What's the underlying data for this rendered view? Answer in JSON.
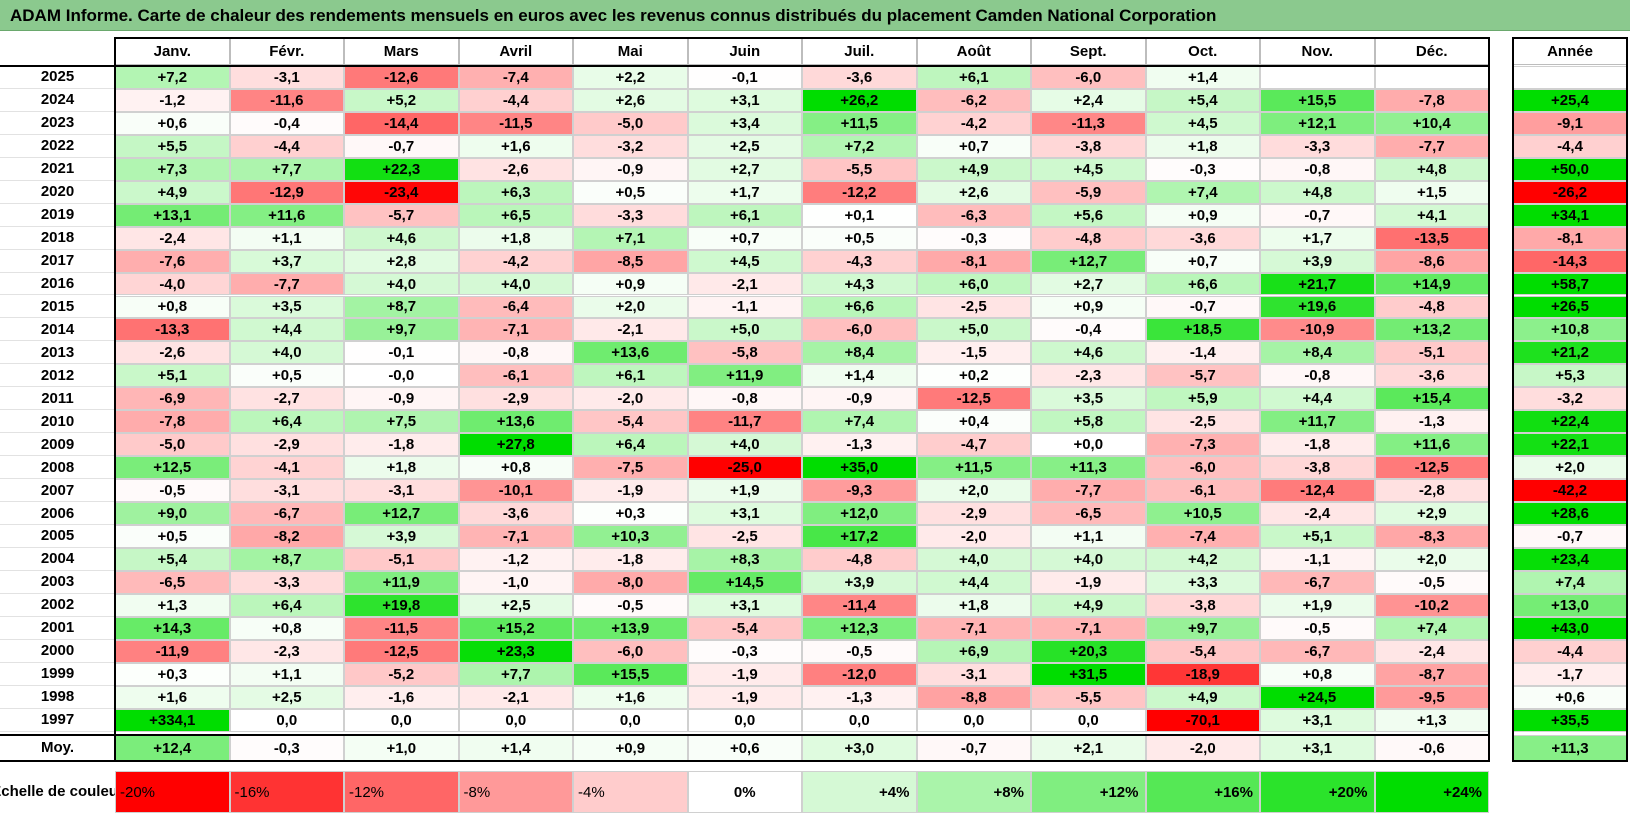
{
  "title": "ADAM Informe. Carte de chaleur des rendements mensuels en euros avec les revenus connus distribués du placement Camden National Corporation",
  "chart_data": {
    "type": "heatmap",
    "title": "ADAM Informe. Carte de chaleur des rendements mensuels en euros avec les revenus connus distribués du placement Camden National Corporation",
    "columns": [
      "Janv.",
      "Févr.",
      "Mars",
      "Avril",
      "Mai",
      "Juin",
      "Juil.",
      "Août",
      "Sept.",
      "Oct.",
      "Nov.",
      "Déc."
    ],
    "year_column_label": "Année",
    "rows": [
      {
        "year": "2025",
        "values": [
          "+7,2",
          "-3,1",
          "-12,6",
          "-7,4",
          "+2,2",
          "-0,1",
          "-3,6",
          "+6,1",
          "-6,0",
          "+1,4",
          "",
          ""
        ],
        "annual": ""
      },
      {
        "year": "2024",
        "values": [
          "-1,2",
          "-11,6",
          "+5,2",
          "-4,4",
          "+2,6",
          "+3,1",
          "+26,2",
          "-6,2",
          "+2,4",
          "+5,4",
          "+15,5",
          "-7,8"
        ],
        "annual": "+25,4"
      },
      {
        "year": "2023",
        "values": [
          "+0,6",
          "-0,4",
          "-14,4",
          "-11,5",
          "-5,0",
          "+3,4",
          "+11,5",
          "-4,2",
          "-11,3",
          "+4,5",
          "+12,1",
          "+10,4"
        ],
        "annual": "-9,1"
      },
      {
        "year": "2022",
        "values": [
          "+5,5",
          "-4,4",
          "-0,7",
          "+1,6",
          "-3,2",
          "+2,5",
          "+7,2",
          "+0,7",
          "-3,8",
          "+1,8",
          "-3,3",
          "-7,7"
        ],
        "annual": "-4,4"
      },
      {
        "year": "2021",
        "values": [
          "+7,3",
          "+7,7",
          "+22,3",
          "-2,6",
          "-0,9",
          "+2,7",
          "-5,5",
          "+4,9",
          "+4,5",
          "-0,3",
          "-0,8",
          "+4,8"
        ],
        "annual": "+50,0"
      },
      {
        "year": "2020",
        "values": [
          "+4,9",
          "-12,9",
          "-23,4",
          "+6,3",
          "+0,5",
          "+1,7",
          "-12,2",
          "+2,6",
          "-5,9",
          "+7,4",
          "+4,8",
          "+1,5"
        ],
        "annual": "-26,2"
      },
      {
        "year": "2019",
        "values": [
          "+13,1",
          "+11,6",
          "-5,7",
          "+6,5",
          "-3,3",
          "+6,1",
          "+0,1",
          "-6,3",
          "+5,6",
          "+0,9",
          "-0,7",
          "+4,1"
        ],
        "annual": "+34,1"
      },
      {
        "year": "2018",
        "values": [
          "-2,4",
          "+1,1",
          "+4,6",
          "+1,8",
          "+7,1",
          "+0,7",
          "+0,5",
          "-0,3",
          "-4,8",
          "-3,6",
          "+1,7",
          "-13,5"
        ],
        "annual": "-8,1"
      },
      {
        "year": "2017",
        "values": [
          "-7,6",
          "+3,7",
          "+2,8",
          "-4,2",
          "-8,5",
          "+4,5",
          "-4,3",
          "-8,1",
          "+12,7",
          "+0,7",
          "+3,9",
          "-8,6"
        ],
        "annual": "-14,3"
      },
      {
        "year": "2016",
        "values": [
          "-4,0",
          "-7,7",
          "+4,0",
          "+4,0",
          "+0,9",
          "-2,1",
          "+4,3",
          "+6,0",
          "+2,7",
          "+6,6",
          "+21,7",
          "+14,9"
        ],
        "annual": "+58,7"
      },
      {
        "year": "2015",
        "values": [
          "+0,8",
          "+3,5",
          "+8,7",
          "-6,4",
          "+2,0",
          "-1,1",
          "+6,6",
          "-2,5",
          "+0,9",
          "-0,7",
          "+19,6",
          "-4,8"
        ],
        "annual": "+26,5"
      },
      {
        "year": "2014",
        "values": [
          "-13,3",
          "+4,4",
          "+9,7",
          "-7,1",
          "-2,1",
          "+5,0",
          "-6,0",
          "+5,0",
          "-0,4",
          "+18,5",
          "-10,9",
          "+13,2"
        ],
        "annual": "+10,8"
      },
      {
        "year": "2013",
        "values": [
          "-2,6",
          "+4,0",
          "-0,1",
          "-0,8",
          "+13,6",
          "-5,8",
          "+8,4",
          "-1,5",
          "+4,6",
          "-1,4",
          "+8,4",
          "-5,1"
        ],
        "annual": "+21,2"
      },
      {
        "year": "2012",
        "values": [
          "+5,1",
          "+0,5",
          "-0,0",
          "-6,1",
          "+6,1",
          "+11,9",
          "+1,4",
          "+0,2",
          "-2,3",
          "-5,7",
          "-0,8",
          "-3,6"
        ],
        "annual": "+5,3"
      },
      {
        "year": "2011",
        "values": [
          "-6,9",
          "-2,7",
          "-0,9",
          "-2,9",
          "-2,0",
          "-0,8",
          "-0,9",
          "-12,5",
          "+3,5",
          "+5,9",
          "+4,4",
          "+15,4"
        ],
        "annual": "-3,2"
      },
      {
        "year": "2010",
        "values": [
          "-7,8",
          "+6,4",
          "+7,5",
          "+13,6",
          "-5,4",
          "-11,7",
          "+7,4",
          "+0,4",
          "+5,8",
          "-2,5",
          "+11,7",
          "-1,3"
        ],
        "annual": "+22,4"
      },
      {
        "year": "2009",
        "values": [
          "-5,0",
          "-2,9",
          "-1,8",
          "+27,8",
          "+6,4",
          "+4,0",
          "-1,3",
          "-4,7",
          "+0,0",
          "-7,3",
          "-1,8",
          "+11,6"
        ],
        "annual": "+22,1"
      },
      {
        "year": "2008",
        "values": [
          "+12,5",
          "-4,1",
          "+1,8",
          "+0,8",
          "-7,5",
          "-25,0",
          "+35,0",
          "+11,5",
          "+11,3",
          "-6,0",
          "-3,8",
          "-12,5"
        ],
        "annual": "+2,0"
      },
      {
        "year": "2007",
        "values": [
          "-0,5",
          "-3,1",
          "-3,1",
          "-10,1",
          "-1,9",
          "+1,9",
          "-9,3",
          "+2,0",
          "-7,7",
          "-6,1",
          "-12,4",
          "-2,8"
        ],
        "annual": "-42,2"
      },
      {
        "year": "2006",
        "values": [
          "+9,0",
          "-6,7",
          "+12,7",
          "-3,6",
          "+0,3",
          "+3,1",
          "+12,0",
          "-2,9",
          "-6,5",
          "+10,5",
          "-2,4",
          "+2,9"
        ],
        "annual": "+28,6"
      },
      {
        "year": "2005",
        "values": [
          "+0,5",
          "-8,2",
          "+3,9",
          "-7,1",
          "+10,3",
          "-2,5",
          "+17,2",
          "-2,0",
          "+1,1",
          "-7,4",
          "+5,1",
          "-8,3"
        ],
        "annual": "-0,7"
      },
      {
        "year": "2004",
        "values": [
          "+5,4",
          "+8,7",
          "-5,1",
          "-1,2",
          "-1,8",
          "+8,3",
          "-4,8",
          "+4,0",
          "+4,0",
          "+4,2",
          "-1,1",
          "+2,0"
        ],
        "annual": "+23,4"
      },
      {
        "year": "2003",
        "values": [
          "-6,5",
          "-3,3",
          "+11,9",
          "-1,0",
          "-8,0",
          "+14,5",
          "+3,9",
          "+4,4",
          "-1,9",
          "+3,3",
          "-6,7",
          "-0,5"
        ],
        "annual": "+7,4"
      },
      {
        "year": "2002",
        "values": [
          "+1,3",
          "+6,4",
          "+19,8",
          "+2,5",
          "-0,5",
          "+3,1",
          "-11,4",
          "+1,8",
          "+4,9",
          "-3,8",
          "+1,9",
          "-10,2"
        ],
        "annual": "+13,0"
      },
      {
        "year": "2001",
        "values": [
          "+14,3",
          "+0,8",
          "-11,5",
          "+15,2",
          "+13,9",
          "-5,4",
          "+12,3",
          "-7,1",
          "-7,1",
          "+9,7",
          "-0,5",
          "+7,4"
        ],
        "annual": "+43,0"
      },
      {
        "year": "2000",
        "values": [
          "-11,9",
          "-2,3",
          "-12,5",
          "+23,3",
          "-6,0",
          "-0,3",
          "-0,5",
          "+6,9",
          "+20,3",
          "-5,4",
          "-6,7",
          "-2,4"
        ],
        "annual": "-4,4"
      },
      {
        "year": "1999",
        "values": [
          "+0,3",
          "+1,1",
          "-5,2",
          "+7,7",
          "+15,5",
          "-1,9",
          "-12,0",
          "-3,1",
          "+31,5",
          "-18,9",
          "+0,8",
          "-8,7"
        ],
        "annual": "-1,7"
      },
      {
        "year": "1998",
        "values": [
          "+1,6",
          "+2,5",
          "-1,6",
          "-2,1",
          "+1,6",
          "-1,9",
          "-1,3",
          "-8,8",
          "-5,5",
          "+4,9",
          "+24,5",
          "-9,5"
        ],
        "annual": "+0,6"
      },
      {
        "year": "1997",
        "values": [
          "+334,1",
          "0,0",
          "0,0",
          "0,0",
          "0,0",
          "0,0",
          "0,0",
          "0,0",
          "0,0",
          "-70,1",
          "+3,1",
          "+1,3"
        ],
        "annual": "+35,5"
      }
    ],
    "average": {
      "label": "Moy.",
      "values": [
        "+12,4",
        "-0,3",
        "+1,0",
        "+1,4",
        "+0,9",
        "+0,6",
        "+3,0",
        "-0,7",
        "+2,1",
        "-2,0",
        "+3,1",
        "-0,6"
      ],
      "annual": "+11,3"
    },
    "color_scale": {
      "label": "Echelle de couleur",
      "stops": [
        "-20%",
        "-16%",
        "-12%",
        "-8%",
        "-4%",
        "0%",
        "+4%",
        "+8%",
        "+12%",
        "+16%",
        "+20%",
        "+24%"
      ],
      "stop_values": [
        -20,
        -16,
        -12,
        -8,
        -4,
        0,
        4,
        8,
        12,
        16,
        20,
        24
      ],
      "negative_color": "#ff0000",
      "neutral_color": "#ffffff",
      "positive_color": "#00dd00"
    }
  }
}
